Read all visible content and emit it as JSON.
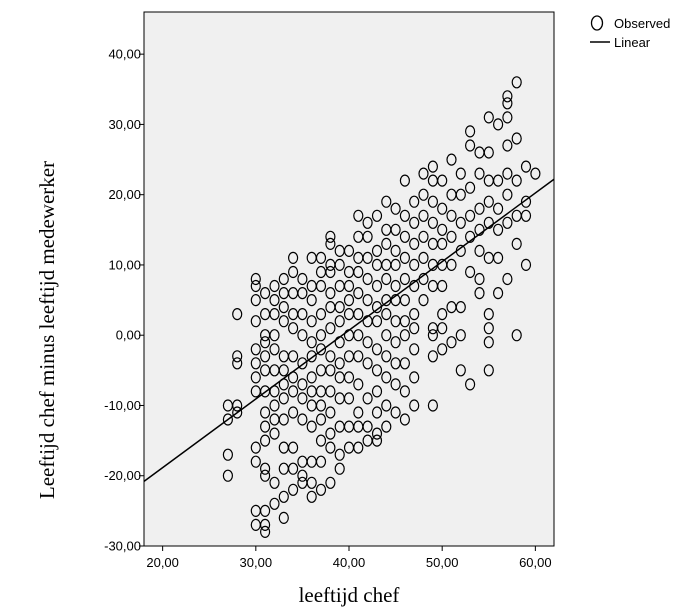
{
  "chart_data": {
    "type": "scatter",
    "title": "",
    "xlabel": "leeftijd chef",
    "ylabel": "Leeftijd chef minus leeftijd medewerker",
    "xlim": [
      18,
      62
    ],
    "ylim": [
      -30,
      46
    ],
    "x_ticks": [
      {
        "value": 20,
        "label": "20,00"
      },
      {
        "value": 30,
        "label": "30,00"
      },
      {
        "value": 40,
        "label": "40,00"
      },
      {
        "value": 50,
        "label": "50,00"
      },
      {
        "value": 60,
        "label": "60,00"
      }
    ],
    "y_ticks": [
      {
        "value": -30,
        "label": "-30,00"
      },
      {
        "value": -20,
        "label": "-20,00"
      },
      {
        "value": -10,
        "label": "-10,00"
      },
      {
        "value": 0,
        "label": "0,00"
      },
      {
        "value": 10,
        "label": "10,00"
      },
      {
        "value": 20,
        "label": "20,00"
      },
      {
        "value": 30,
        "label": "30,00"
      },
      {
        "value": 40,
        "label": "40,00"
      }
    ],
    "grid": false,
    "plot_background": "#f0f0f0",
    "legend": {
      "placement": "top-right outside",
      "entries": [
        {
          "label": "Observed",
          "marker": "circle"
        },
        {
          "label": "Linear",
          "marker": "line"
        }
      ]
    },
    "series": [
      {
        "name": "Observed",
        "points": [
          [
            27,
            -10
          ],
          [
            27,
            -12
          ],
          [
            27,
            -17
          ],
          [
            27,
            -20
          ],
          [
            28,
            -10
          ],
          [
            28,
            -11
          ],
          [
            28,
            -4
          ],
          [
            28,
            -3
          ],
          [
            28,
            3
          ],
          [
            30,
            8
          ],
          [
            30,
            7
          ],
          [
            30,
            5
          ],
          [
            30,
            2
          ],
          [
            30,
            -2
          ],
          [
            30,
            -4
          ],
          [
            30,
            -6
          ],
          [
            30,
            -8
          ],
          [
            30,
            -16
          ],
          [
            30,
            -18
          ],
          [
            30,
            -25
          ],
          [
            30,
            -27
          ],
          [
            31,
            -1
          ],
          [
            31,
            -3
          ],
          [
            31,
            -5
          ],
          [
            31,
            -8
          ],
          [
            31,
            -11
          ],
          [
            31,
            -13
          ],
          [
            31,
            -15
          ],
          [
            31,
            -19
          ],
          [
            31,
            -20
          ],
          [
            31,
            -25
          ],
          [
            31,
            -27
          ],
          [
            31,
            -28
          ],
          [
            31,
            0
          ],
          [
            31,
            3
          ],
          [
            31,
            6
          ],
          [
            32,
            7
          ],
          [
            32,
            5
          ],
          [
            32,
            3
          ],
          [
            32,
            0
          ],
          [
            32,
            -2
          ],
          [
            32,
            -5
          ],
          [
            32,
            -8
          ],
          [
            32,
            -10
          ],
          [
            32,
            -12
          ],
          [
            32,
            -14
          ],
          [
            32,
            -21
          ],
          [
            32,
            -24
          ],
          [
            33,
            8
          ],
          [
            33,
            6
          ],
          [
            33,
            4
          ],
          [
            33,
            2
          ],
          [
            33,
            -3
          ],
          [
            33,
            -5
          ],
          [
            33,
            -7
          ],
          [
            33,
            -9
          ],
          [
            33,
            -12
          ],
          [
            33,
            -16
          ],
          [
            33,
            -19
          ],
          [
            33,
            -23
          ],
          [
            33,
            -26
          ],
          [
            34,
            11
          ],
          [
            34,
            9
          ],
          [
            34,
            6
          ],
          [
            34,
            3
          ],
          [
            34,
            1
          ],
          [
            34,
            -3
          ],
          [
            34,
            -6
          ],
          [
            34,
            -8
          ],
          [
            34,
            -11
          ],
          [
            34,
            -16
          ],
          [
            34,
            -19
          ],
          [
            34,
            -22
          ],
          [
            35,
            8
          ],
          [
            35,
            6
          ],
          [
            35,
            3
          ],
          [
            35,
            0
          ],
          [
            35,
            -4
          ],
          [
            35,
            -7
          ],
          [
            35,
            -9
          ],
          [
            35,
            -12
          ],
          [
            35,
            -18
          ],
          [
            35,
            -20
          ],
          [
            35,
            -21
          ],
          [
            36,
            11
          ],
          [
            36,
            7
          ],
          [
            36,
            5
          ],
          [
            36,
            2
          ],
          [
            36,
            -1
          ],
          [
            36,
            -3
          ],
          [
            36,
            -6
          ],
          [
            36,
            -8
          ],
          [
            36,
            -10
          ],
          [
            36,
            -13
          ],
          [
            36,
            -18
          ],
          [
            36,
            -21
          ],
          [
            36,
            -23
          ],
          [
            37,
            11
          ],
          [
            37,
            9
          ],
          [
            37,
            7
          ],
          [
            37,
            3
          ],
          [
            37,
            0
          ],
          [
            37,
            -2
          ],
          [
            37,
            -5
          ],
          [
            37,
            -8
          ],
          [
            37,
            -10
          ],
          [
            37,
            -12
          ],
          [
            37,
            -15
          ],
          [
            37,
            -18
          ],
          [
            37,
            -22
          ],
          [
            38,
            14
          ],
          [
            38,
            13
          ],
          [
            38,
            10
          ],
          [
            38,
            9
          ],
          [
            38,
            6
          ],
          [
            38,
            4
          ],
          [
            38,
            1
          ],
          [
            38,
            -3
          ],
          [
            38,
            -5
          ],
          [
            38,
            -8
          ],
          [
            38,
            -11
          ],
          [
            38,
            -14
          ],
          [
            38,
            -16
          ],
          [
            38,
            -21
          ],
          [
            39,
            12
          ],
          [
            39,
            10
          ],
          [
            39,
            7
          ],
          [
            39,
            4
          ],
          [
            39,
            2
          ],
          [
            39,
            -1
          ],
          [
            39,
            -4
          ],
          [
            39,
            -6
          ],
          [
            39,
            -9
          ],
          [
            39,
            -13
          ],
          [
            39,
            -17
          ],
          [
            39,
            -19
          ],
          [
            40,
            12
          ],
          [
            40,
            9
          ],
          [
            40,
            7
          ],
          [
            40,
            5
          ],
          [
            40,
            3
          ],
          [
            40,
            0
          ],
          [
            40,
            -3
          ],
          [
            40,
            -6
          ],
          [
            40,
            -9
          ],
          [
            40,
            -13
          ],
          [
            40,
            -16
          ],
          [
            41,
            17
          ],
          [
            41,
            14
          ],
          [
            41,
            11
          ],
          [
            41,
            9
          ],
          [
            41,
            6
          ],
          [
            41,
            3
          ],
          [
            41,
            0
          ],
          [
            41,
            -3
          ],
          [
            41,
            -7
          ],
          [
            41,
            -11
          ],
          [
            41,
            -13
          ],
          [
            41,
            -16
          ],
          [
            42,
            16
          ],
          [
            42,
            14
          ],
          [
            42,
            11
          ],
          [
            42,
            8
          ],
          [
            42,
            5
          ],
          [
            42,
            2
          ],
          [
            42,
            -1
          ],
          [
            42,
            -4
          ],
          [
            42,
            -9
          ],
          [
            42,
            -13
          ],
          [
            42,
            -15
          ],
          [
            43,
            17
          ],
          [
            43,
            12
          ],
          [
            43,
            10
          ],
          [
            43,
            7
          ],
          [
            43,
            4
          ],
          [
            43,
            2
          ],
          [
            43,
            -2
          ],
          [
            43,
            -5
          ],
          [
            43,
            -8
          ],
          [
            43,
            -11
          ],
          [
            43,
            -14
          ],
          [
            43,
            -15
          ],
          [
            44,
            19
          ],
          [
            44,
            15
          ],
          [
            44,
            13
          ],
          [
            44,
            10
          ],
          [
            44,
            8
          ],
          [
            44,
            5
          ],
          [
            44,
            3
          ],
          [
            44,
            0
          ],
          [
            44,
            -3
          ],
          [
            44,
            -6
          ],
          [
            44,
            -10
          ],
          [
            44,
            -13
          ],
          [
            45,
            18
          ],
          [
            45,
            15
          ],
          [
            45,
            12
          ],
          [
            45,
            10
          ],
          [
            45,
            7
          ],
          [
            45,
            5
          ],
          [
            45,
            2
          ],
          [
            45,
            -1
          ],
          [
            45,
            -4
          ],
          [
            45,
            -7
          ],
          [
            45,
            -11
          ],
          [
            46,
            22
          ],
          [
            46,
            17
          ],
          [
            46,
            14
          ],
          [
            46,
            11
          ],
          [
            46,
            8
          ],
          [
            46,
            5
          ],
          [
            46,
            2
          ],
          [
            46,
            0
          ],
          [
            46,
            -4
          ],
          [
            46,
            -8
          ],
          [
            46,
            -12
          ],
          [
            47,
            19
          ],
          [
            47,
            16
          ],
          [
            47,
            13
          ],
          [
            47,
            10
          ],
          [
            47,
            7
          ],
          [
            47,
            3
          ],
          [
            47,
            1
          ],
          [
            47,
            -2
          ],
          [
            47,
            -6
          ],
          [
            47,
            -10
          ],
          [
            48,
            23
          ],
          [
            48,
            20
          ],
          [
            48,
            17
          ],
          [
            48,
            14
          ],
          [
            48,
            11
          ],
          [
            48,
            8
          ],
          [
            48,
            5
          ],
          [
            49,
            24
          ],
          [
            49,
            22
          ],
          [
            49,
            19
          ],
          [
            49,
            16
          ],
          [
            49,
            13
          ],
          [
            49,
            10
          ],
          [
            49,
            7
          ],
          [
            49,
            1
          ],
          [
            49,
            0
          ],
          [
            49,
            -3
          ],
          [
            49,
            -10
          ],
          [
            50,
            22
          ],
          [
            50,
            18
          ],
          [
            50,
            15
          ],
          [
            50,
            13
          ],
          [
            50,
            10
          ],
          [
            50,
            7
          ],
          [
            50,
            3
          ],
          [
            50,
            1
          ],
          [
            50,
            -2
          ],
          [
            51,
            25
          ],
          [
            51,
            20
          ],
          [
            51,
            17
          ],
          [
            51,
            14
          ],
          [
            51,
            10
          ],
          [
            51,
            4
          ],
          [
            51,
            -1
          ],
          [
            52,
            23
          ],
          [
            52,
            20
          ],
          [
            52,
            16
          ],
          [
            52,
            12
          ],
          [
            52,
            4
          ],
          [
            52,
            0
          ],
          [
            52,
            -5
          ],
          [
            53,
            29
          ],
          [
            53,
            27
          ],
          [
            53,
            21
          ],
          [
            53,
            17
          ],
          [
            53,
            14
          ],
          [
            53,
            9
          ],
          [
            53,
            -7
          ],
          [
            54,
            26
          ],
          [
            54,
            23
          ],
          [
            54,
            18
          ],
          [
            54,
            15
          ],
          [
            54,
            12
          ],
          [
            54,
            8
          ],
          [
            54,
            6
          ],
          [
            55,
            31
          ],
          [
            55,
            26
          ],
          [
            55,
            22
          ],
          [
            55,
            19
          ],
          [
            55,
            16
          ],
          [
            55,
            11
          ],
          [
            55,
            3
          ],
          [
            55,
            1
          ],
          [
            55,
            -1
          ],
          [
            55,
            -5
          ],
          [
            56,
            30
          ],
          [
            56,
            22
          ],
          [
            56,
            18
          ],
          [
            56,
            15
          ],
          [
            56,
            11
          ],
          [
            56,
            6
          ],
          [
            57,
            34
          ],
          [
            57,
            33
          ],
          [
            57,
            31
          ],
          [
            57,
            27
          ],
          [
            57,
            23
          ],
          [
            57,
            20
          ],
          [
            57,
            16
          ],
          [
            57,
            8
          ],
          [
            58,
            36
          ],
          [
            58,
            28
          ],
          [
            58,
            22
          ],
          [
            58,
            17
          ],
          [
            58,
            13
          ],
          [
            58,
            0
          ],
          [
            59,
            24
          ],
          [
            59,
            19
          ],
          [
            59,
            17
          ],
          [
            59,
            10
          ],
          [
            60,
            23
          ]
        ]
      },
      {
        "name": "Linear",
        "line": {
          "x": [
            18,
            62
          ],
          "y": [
            -20.8,
            22.2
          ]
        }
      }
    ]
  }
}
